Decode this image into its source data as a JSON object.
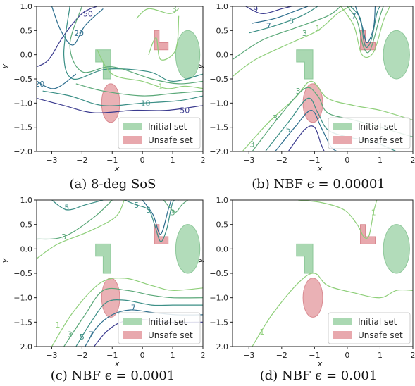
{
  "chart_data": [
    {
      "type": "contour",
      "caption": "(a) 8-deg SoS",
      "xlabel": "x",
      "ylabel": "y",
      "xlim": [
        -3.5,
        2.0
      ],
      "ylim": [
        -2.0,
        1.0
      ],
      "xticks": [
        "−3",
        "−2",
        "−1",
        "0",
        "1",
        "2"
      ],
      "yticks": [
        "−2.0",
        "−1.5",
        "−1.0",
        "−0.5",
        "0.0",
        "0.5",
        "1.0"
      ],
      "legend": [
        "Initial set",
        "Unsafe set"
      ],
      "contour_labels": [
        {
          "text": "50",
          "x": -1.8,
          "y": 0.85,
          "color": "#3b3b8f"
        },
        {
          "text": "20",
          "x": -2.1,
          "y": 0.45,
          "color": "#2f6f8f"
        },
        {
          "text": "3",
          "x": 1.05,
          "y": 0.95,
          "color": "#6fb36a"
        },
        {
          "text": "1",
          "x": 0.6,
          "y": -0.65,
          "color": "#8fcf7a"
        },
        {
          "text": "10",
          "x": 0.1,
          "y": -1.0,
          "color": "#3b8f86"
        },
        {
          "text": "50",
          "x": 1.4,
          "y": -1.15,
          "color": "#3b3b8f"
        },
        {
          "text": "20",
          "x": -3.4,
          "y": -0.6,
          "color": "#2f6f8f"
        }
      ]
    },
    {
      "type": "contour",
      "caption": "(b) NBF ϵ = 0.00001",
      "xlabel": "x",
      "ylabel": "y",
      "xlim": [
        -3.5,
        2.0
      ],
      "ylim": [
        -2.0,
        1.0
      ],
      "xticks": [
        "−3",
        "−2",
        "−1",
        "0",
        "1",
        "2"
      ],
      "yticks": [
        "−2.0",
        "−1.5",
        "−1.0",
        "−0.5",
        "0.0",
        "0.5",
        "1.0"
      ],
      "legend": [
        "Initial set",
        "Unsafe set"
      ],
      "contour_labels": [
        {
          "text": "9",
          "x": -2.8,
          "y": 0.95,
          "color": "#3b3b8f"
        },
        {
          "text": "7",
          "x": -2.4,
          "y": 0.6,
          "color": "#2f6f8f"
        },
        {
          "text": "5",
          "x": -1.7,
          "y": 0.7,
          "color": "#3b8f86"
        },
        {
          "text": "3",
          "x": -1.3,
          "y": 0.45,
          "color": "#5aa878"
        },
        {
          "text": "1",
          "x": -0.9,
          "y": 0.55,
          "color": "#8fcf7a"
        },
        {
          "text": "7",
          "x": 0.2,
          "y": 0.8,
          "color": "#2f6f8f"
        },
        {
          "text": "3",
          "x": -2.2,
          "y": -1.3,
          "color": "#5aa878"
        },
        {
          "text": "5",
          "x": -1.8,
          "y": -1.55,
          "color": "#3b8f86"
        },
        {
          "text": "3",
          "x": -2.9,
          "y": -1.85,
          "color": "#5aa878"
        },
        {
          "text": "3",
          "x": -1.5,
          "y": -0.75,
          "color": "#5aa878"
        }
      ]
    },
    {
      "type": "contour",
      "caption": "(c) NBF ϵ = 0.0001",
      "xlabel": "x",
      "ylabel": "y",
      "xlim": [
        -3.5,
        2.0
      ],
      "ylim": [
        -2.0,
        1.0
      ],
      "xticks": [
        "−3",
        "−2",
        "−1",
        "0",
        "1",
        "2"
      ],
      "yticks": [
        "−2.0",
        "−1.5",
        "−1.0",
        "−0.5",
        "0.0",
        "0.5",
        "1.0"
      ],
      "legend": [
        "Initial set",
        "Unsafe set"
      ],
      "contour_labels": [
        {
          "text": "5",
          "x": -2.5,
          "y": 0.85,
          "color": "#3b8f86"
        },
        {
          "text": "3",
          "x": -2.6,
          "y": 0.25,
          "color": "#5aa878"
        },
        {
          "text": "5",
          "x": -0.2,
          "y": 0.9,
          "color": "#3b8f86"
        },
        {
          "text": "5",
          "x": 0.2,
          "y": 0.8,
          "color": "#3b8f86"
        },
        {
          "text": "3",
          "x": 1.0,
          "y": 0.75,
          "color": "#5aa878"
        },
        {
          "text": "1",
          "x": -2.8,
          "y": -1.55,
          "color": "#8fcf7a"
        },
        {
          "text": "3",
          "x": -2.4,
          "y": -1.75,
          "color": "#5aa878"
        },
        {
          "text": "5",
          "x": -2.0,
          "y": -1.8,
          "color": "#3b8f86"
        },
        {
          "text": "7",
          "x": -1.7,
          "y": -1.75,
          "color": "#2f6f8f"
        },
        {
          "text": "7",
          "x": -0.3,
          "y": -1.2,
          "color": "#2f6f8f"
        }
      ]
    },
    {
      "type": "contour",
      "caption": "(d) NBF ϵ = 0.001",
      "xlabel": "x",
      "ylabel": "y",
      "xlim": [
        -3.5,
        2.0
      ],
      "ylim": [
        -2.0,
        1.0
      ],
      "xticks": [
        "−3",
        "−2",
        "−1",
        "0",
        "1",
        "2"
      ],
      "yticks": [
        "−2.0",
        "−1.5",
        "−1.0",
        "−0.5",
        "0.0",
        "0.5",
        "1.0"
      ],
      "legend": [
        "Initial set",
        "Unsafe set"
      ],
      "contour_labels": [
        {
          "text": "1",
          "x": 0.8,
          "y": 0.75,
          "color": "#8fcf7a"
        },
        {
          "text": "1",
          "x": -2.6,
          "y": -1.7,
          "color": "#8fcf7a"
        }
      ]
    }
  ],
  "regions": {
    "initial_color": "#aad8b2",
    "initial_edge": "#8ec89a",
    "unsafe_color": "#e8a8ad",
    "unsafe_edge": "#d98a91",
    "initial_set": {
      "ellipse": {
        "cx": 1.5,
        "cy": 0.0,
        "rx": 0.4,
        "ry": 0.5
      },
      "L_shape": [
        [
          -1.55,
          0.1
        ],
        [
          -1.05,
          0.1
        ],
        [
          -1.05,
          -0.5
        ],
        [
          -1.3,
          -0.5
        ],
        [
          -1.3,
          -0.15
        ],
        [
          -1.55,
          -0.15
        ]
      ]
    },
    "unsafe_set": {
      "ellipse": {
        "cx": -1.05,
        "cy": -1.0,
        "rx": 0.3,
        "ry": 0.4
      },
      "L_shape": [
        [
          0.4,
          0.5
        ],
        [
          0.55,
          0.5
        ],
        [
          0.55,
          0.25
        ],
        [
          0.85,
          0.25
        ],
        [
          0.85,
          0.1
        ],
        [
          0.4,
          0.1
        ]
      ]
    }
  },
  "contour_colors": [
    "#3b3b8f",
    "#2f6f8f",
    "#3b8f86",
    "#5aa878",
    "#8fcf7a"
  ]
}
